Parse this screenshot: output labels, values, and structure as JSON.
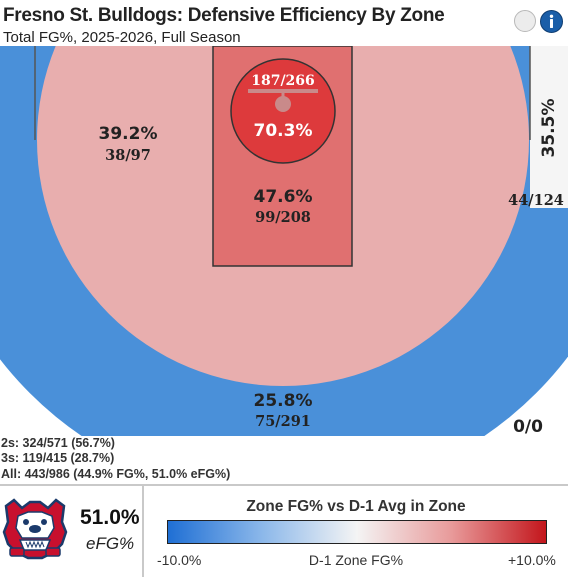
{
  "header": {
    "title": "Fresno St. Bulldogs: Defensive Efficiency By Zone",
    "subtitle": "Total FG%, 2025-2026, Full Season"
  },
  "chart_data": {
    "type": "shot_zone_map",
    "title": "Fresno St. Bulldogs: Defensive Efficiency By Zone",
    "subtitle": "Total FG%, 2025-2026, Full Season",
    "zones": [
      {
        "id": "restricted-area",
        "pct_label": "70.3%",
        "made_att": "187/266",
        "made": 187,
        "attempts": 266,
        "pct": 70.3,
        "color": "#dd3a3c"
      },
      {
        "id": "paint",
        "pct_label": "47.6%",
        "made_att": "99/208",
        "made": 99,
        "attempts": 208,
        "pct": 47.6,
        "color": "#e07070"
      },
      {
        "id": "midrange-left",
        "pct_label": "39.2%",
        "made_att": "38/97",
        "made": 38,
        "attempts": 97,
        "pct": 39.2,
        "color": "#e8aeae"
      },
      {
        "id": "corner-three-right",
        "pct_label": "35.5%",
        "made_att": "44/124",
        "made": 44,
        "attempts": 124,
        "pct": 35.5,
        "color": "#f5f5f5"
      },
      {
        "id": "above-break-three",
        "pct_label": "25.8%",
        "made_att": "75/291",
        "made": 75,
        "attempts": 291,
        "pct": 25.8,
        "color": "#4a90d9"
      },
      {
        "id": "heave",
        "pct_label": "",
        "made_att": "0/0",
        "made": 0,
        "attempts": 0,
        "pct": null,
        "color": "#ffffff"
      }
    ],
    "summary": {
      "twos": "2s: 324/571 (56.7%)",
      "threes": "3s: 119/415 (28.7%)",
      "all": "All: 443/986 (44.9% FG%, 51.0% eFG%)"
    },
    "efg": {
      "value": "51.0%",
      "label": "eFG%"
    },
    "legend": {
      "title": "Zone FG% vs D-1 Avg in Zone",
      "min_label": "-10.0%",
      "mid_label": "D-1 Zone FG%",
      "max_label": "+10.0%",
      "min": -10.0,
      "max": 10.0,
      "colors": [
        "#1f6fd4",
        "#f4f4f4",
        "#c3161c"
      ]
    }
  }
}
